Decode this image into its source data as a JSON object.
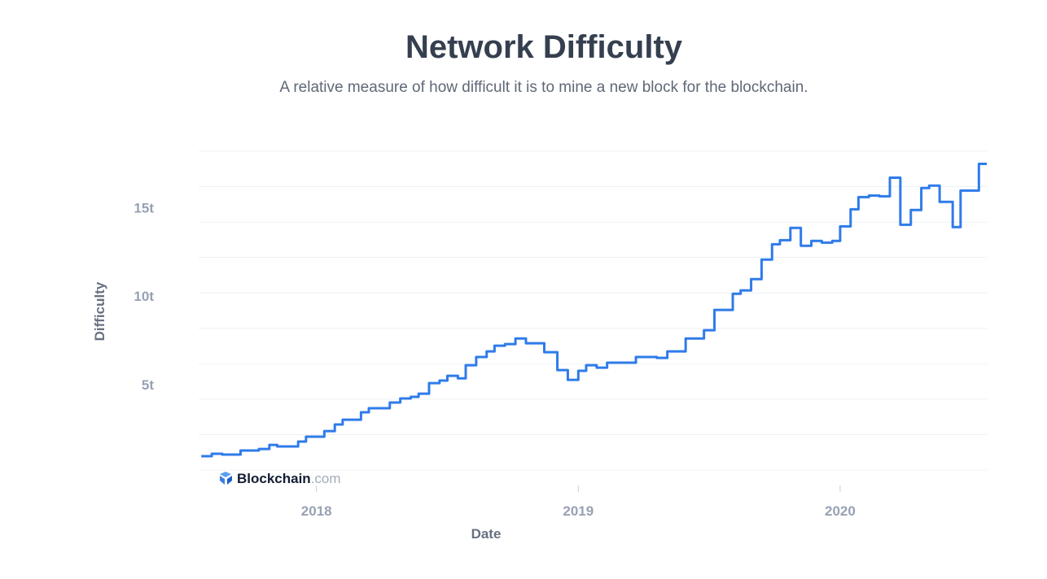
{
  "chart_data": {
    "type": "line",
    "title": "Network Difficulty",
    "subtitle": "A relative measure of how difficult it is to mine a new block for the blockchain.",
    "xlabel": "Date",
    "ylabel": "Difficulty",
    "xlim": [
      2017.55,
      2020.56
    ],
    "ylim": [
      0,
      18
    ],
    "grid": true,
    "gridlines_y": [
      0,
      2,
      4,
      6,
      8,
      10,
      12,
      14,
      16,
      18
    ],
    "x_ticks": [
      {
        "value": 2018,
        "label": "2018"
      },
      {
        "value": 2019,
        "label": "2019"
      },
      {
        "value": 2020,
        "label": "2020"
      }
    ],
    "y_ticks": [
      {
        "value": 5,
        "label": "5t"
      },
      {
        "value": 10,
        "label": "10t"
      },
      {
        "value": 15,
        "label": "15t"
      }
    ],
    "line_style": "step",
    "color": "#2f7bea",
    "series": [
      {
        "name": "Difficulty (t)",
        "x": [
          2017.56,
          2017.6,
          2017.64,
          2017.71,
          2017.78,
          2017.82,
          2017.85,
          2017.93,
          2017.96,
          2018.03,
          2018.07,
          2018.1,
          2018.17,
          2018.2,
          2018.28,
          2018.32,
          2018.36,
          2018.39,
          2018.43,
          2018.47,
          2018.5,
          2018.54,
          2018.57,
          2018.61,
          2018.65,
          2018.68,
          2018.72,
          2018.76,
          2018.8,
          2018.87,
          2018.92,
          2018.96,
          2019.0,
          2019.03,
          2019.07,
          2019.11,
          2019.22,
          2019.3,
          2019.34,
          2019.41,
          2019.48,
          2019.52,
          2019.59,
          2019.62,
          2019.66,
          2019.7,
          2019.74,
          2019.77,
          2019.81,
          2019.85,
          2019.89,
          2019.93,
          2019.97,
          2020.0,
          2020.04,
          2020.07,
          2020.11,
          2020.15,
          2020.19,
          2020.23,
          2020.27,
          2020.31,
          2020.34,
          2020.38,
          2020.43,
          2020.46,
          2020.53,
          2020.56
        ],
        "values": [
          0.78,
          0.92,
          0.87,
          1.1,
          1.19,
          1.42,
          1.33,
          1.61,
          1.88,
          2.2,
          2.57,
          2.84,
          3.26,
          3.49,
          3.81,
          4.04,
          4.13,
          4.31,
          4.91,
          5.05,
          5.32,
          5.18,
          5.92,
          6.38,
          6.7,
          7.02,
          7.11,
          7.43,
          7.16,
          6.65,
          5.64,
          5.09,
          5.6,
          5.92,
          5.78,
          6.06,
          6.38,
          6.33,
          6.7,
          7.43,
          7.89,
          9.04,
          9.95,
          10.14,
          10.78,
          11.88,
          12.75,
          12.98,
          13.67,
          12.66,
          12.94,
          12.84,
          12.94,
          13.76,
          14.72,
          15.41,
          15.5,
          15.46,
          16.51,
          13.85,
          14.68,
          15.92,
          16.06,
          15.14,
          13.72,
          15.78,
          17.29,
          17.29
        ]
      }
    ]
  },
  "watermark": {
    "brand": "Blockchain",
    "suffix": ".com"
  }
}
